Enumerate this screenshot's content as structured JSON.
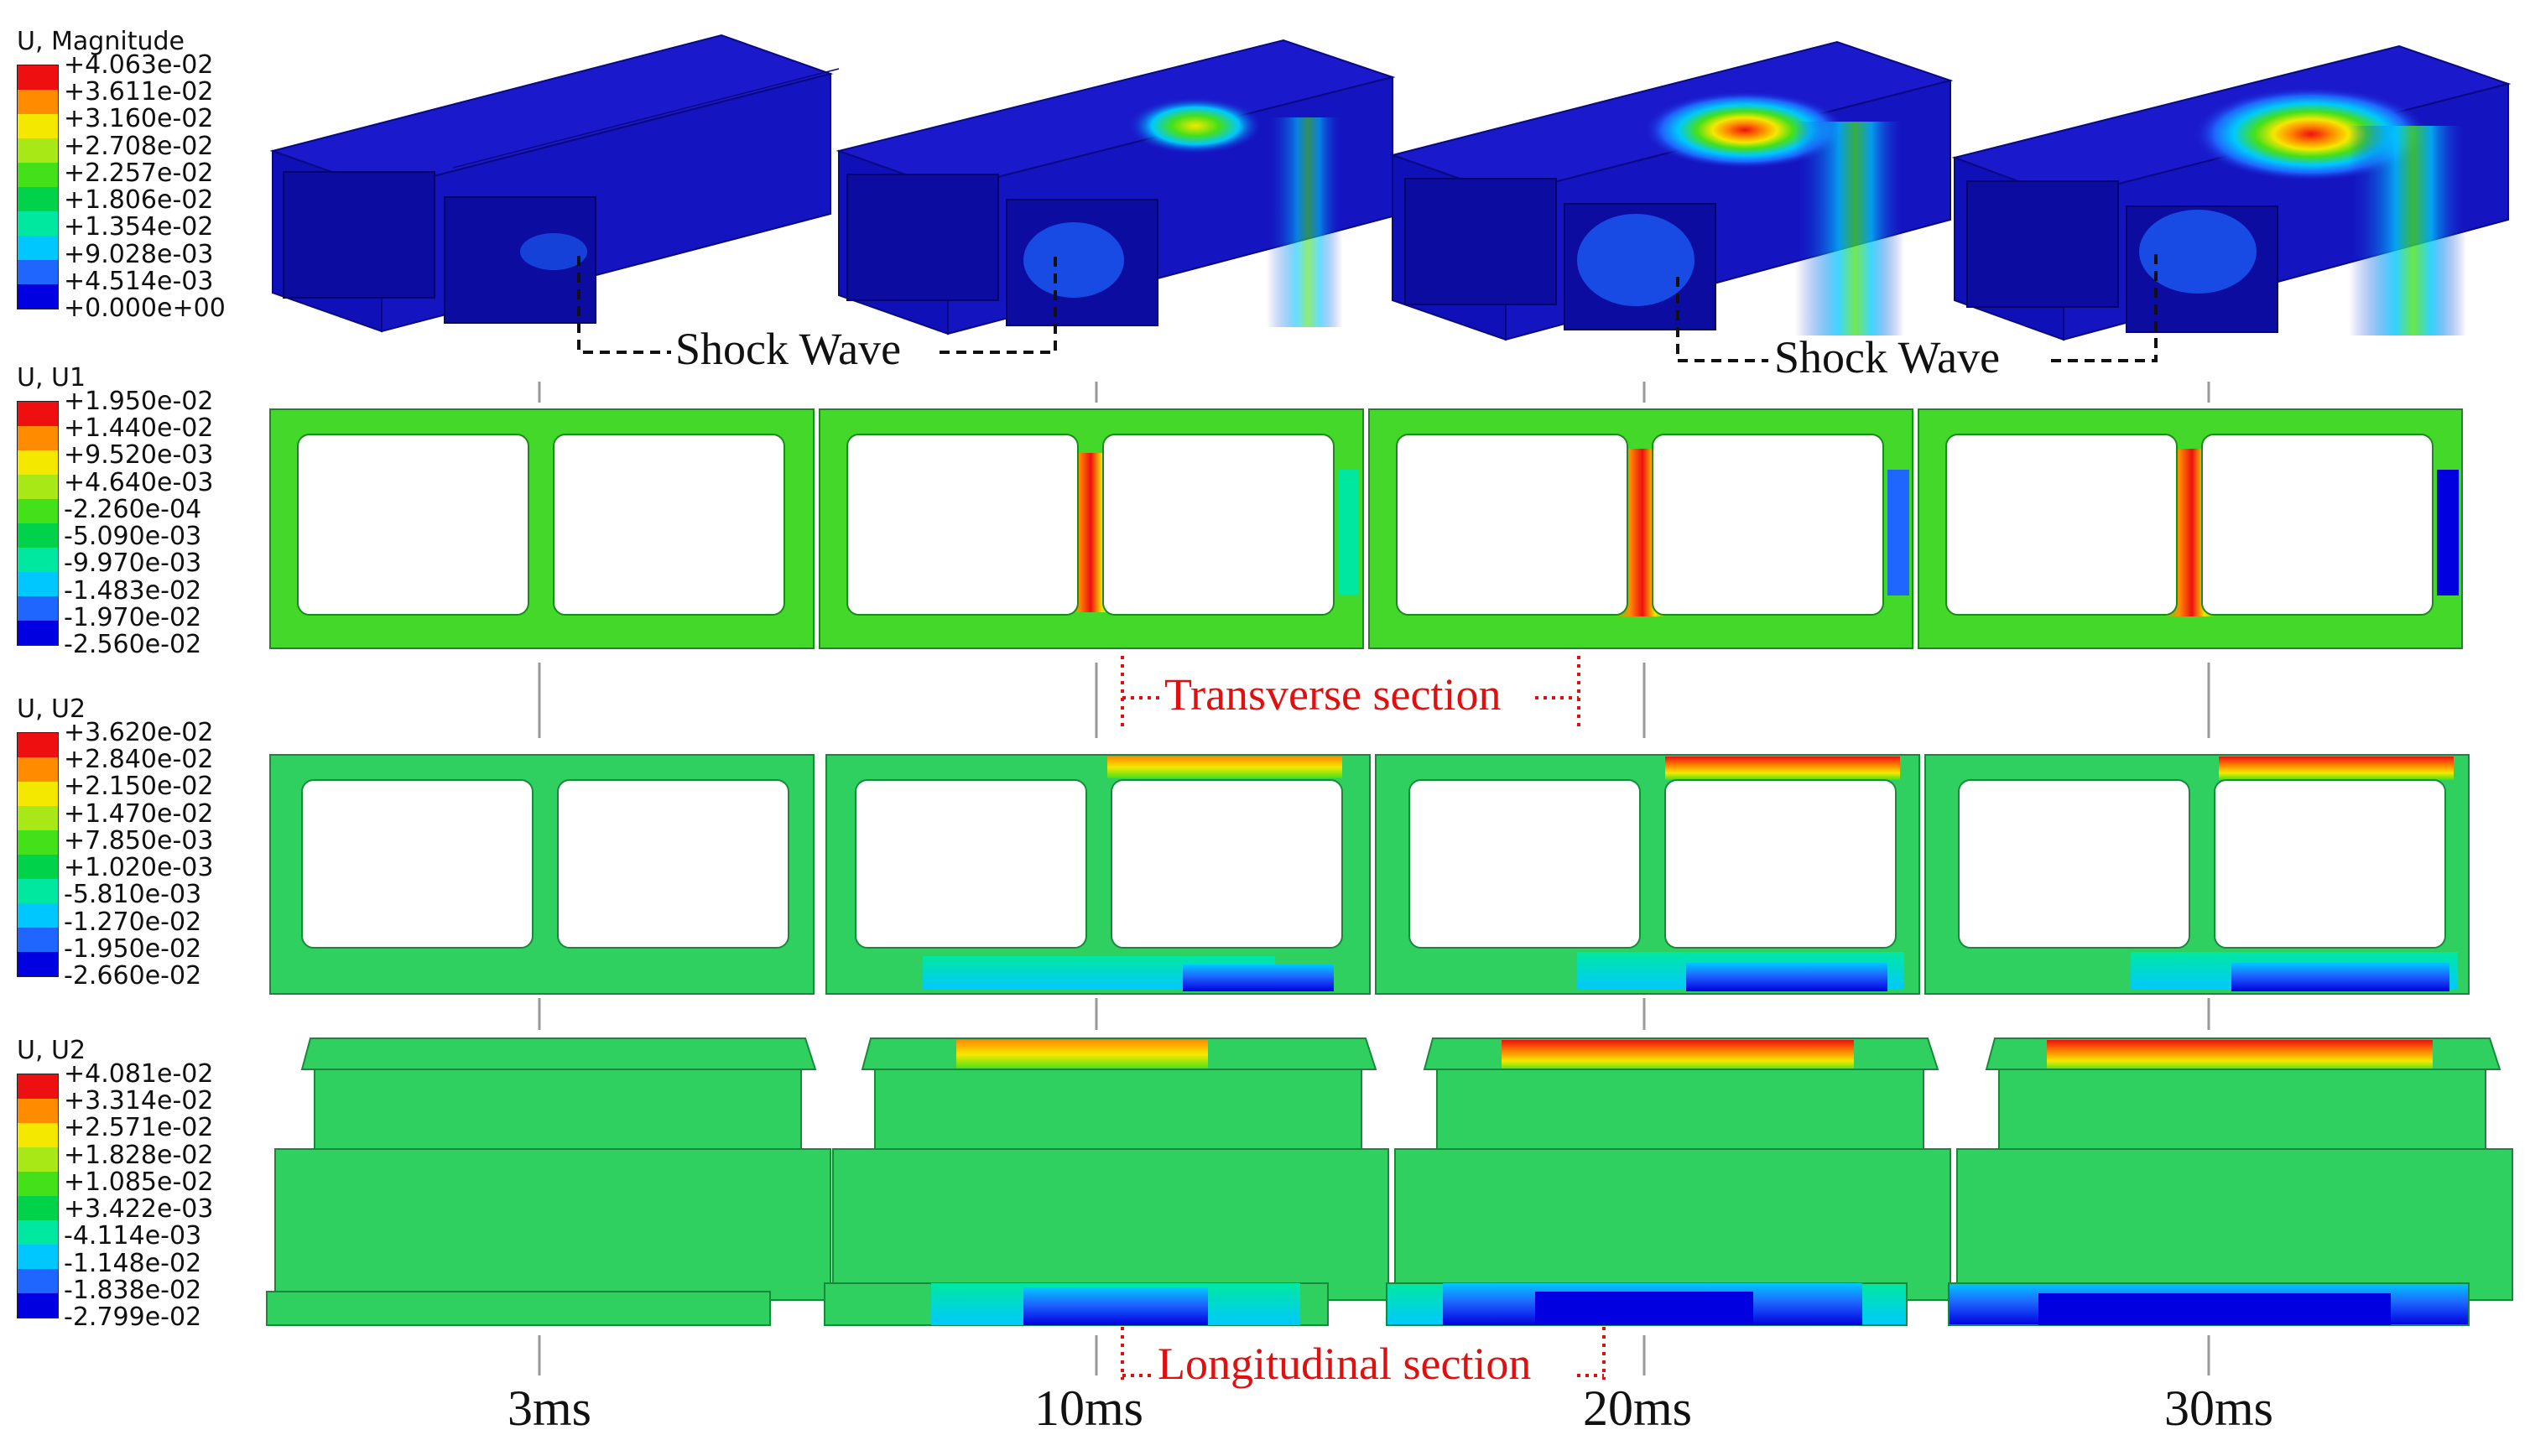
{
  "colors": {
    "scale": [
      "#0000e0",
      "#1e66ff",
      "#00c8ff",
      "#00e8a0",
      "#00d24a",
      "#44e01a",
      "#a8e816",
      "#f4e800",
      "#ff8c00",
      "#ee1010"
    ],
    "dark_blue": "#1a1acc",
    "green": "#2fd060",
    "callout_red": "#e01010"
  },
  "legends": [
    {
      "title": "U, Magnitude",
      "values": [
        "+4.063e-02",
        "+3.611e-02",
        "+3.160e-02",
        "+2.708e-02",
        "+2.257e-02",
        "+1.806e-02",
        "+1.354e-02",
        "+9.028e-03",
        "+4.514e-03",
        "+0.000e+00"
      ]
    },
    {
      "title": "U, U1",
      "values": [
        "+1.950e-02",
        "+1.440e-02",
        "+9.520e-03",
        "+4.640e-03",
        "-2.260e-04",
        "-5.090e-03",
        "-9.970e-03",
        "-1.483e-02",
        "-1.970e-02",
        "-2.560e-02"
      ]
    },
    {
      "title": "U, U2",
      "values": [
        "+3.620e-02",
        "+2.840e-02",
        "+2.150e-02",
        "+1.470e-02",
        "+7.850e-03",
        "+1.020e-03",
        "-5.810e-03",
        "-1.270e-02",
        "-1.950e-02",
        "-2.660e-02"
      ]
    },
    {
      "title": "U, U2",
      "values": [
        "+4.081e-02",
        "+3.314e-02",
        "+2.571e-02",
        "+1.828e-02",
        "+1.085e-02",
        "+3.422e-03",
        "-4.114e-03",
        "-1.148e-02",
        "-1.838e-02",
        "-2.799e-02"
      ]
    }
  ],
  "times": [
    "3ms",
    "10ms",
    "20ms",
    "30ms"
  ],
  "callouts": {
    "shock_wave_1": "Shock Wave",
    "shock_wave_2": "Shock Wave",
    "transverse": "Transverse section",
    "longitudinal": "Longitudinal section"
  }
}
